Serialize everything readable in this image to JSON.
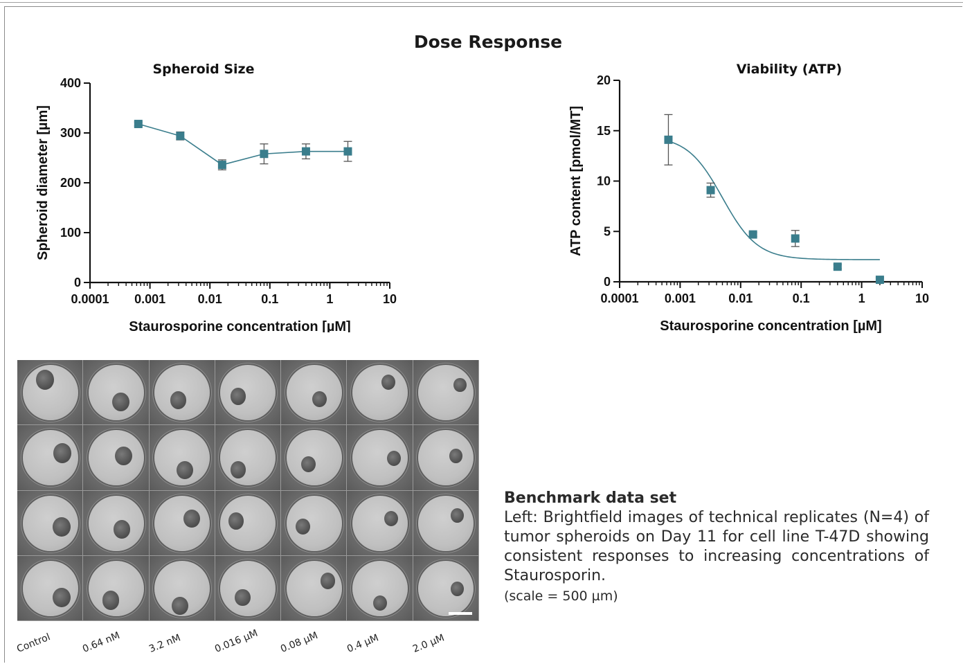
{
  "title": "Dose Response",
  "chart_data": [
    {
      "type": "line",
      "title": "Spheroid Size",
      "xlabel": "Staurosporine concentration [µM]",
      "ylabel": "Spheroid diameter [µm]",
      "xscale": "log",
      "xlim": [
        0.0001,
        10
      ],
      "ylim": [
        0,
        400
      ],
      "xticks": [
        "0.0001",
        "0.001",
        "0.01",
        "0.1",
        "1",
        "10"
      ],
      "yticks": [
        "0",
        "100",
        "200",
        "300",
        "400"
      ],
      "series": [
        {
          "x": [
            0.00064,
            0.0032,
            0.016,
            0.08,
            0.4,
            2.0
          ],
          "y": [
            318,
            294,
            236,
            258,
            263,
            263
          ],
          "err": [
            4,
            8,
            10,
            20,
            15,
            20
          ]
        }
      ],
      "fit": "connecting line",
      "color": "#3a7d8c"
    },
    {
      "type": "scatter",
      "title": "Viability (ATP)",
      "xlabel": "Staurosporine concentration [µM]",
      "ylabel": "ATP content [pmol/MT]",
      "xscale": "log",
      "xlim": [
        0.0001,
        10
      ],
      "ylim": [
        0,
        20
      ],
      "xticks": [
        "0.0001",
        "0.001",
        "0.01",
        "0.1",
        "1",
        "10"
      ],
      "yticks": [
        "0",
        "5",
        "10",
        "15",
        "20"
      ],
      "series": [
        {
          "x": [
            0.00064,
            0.0032,
            0.016,
            0.08,
            0.4,
            2.0
          ],
          "y": [
            14.1,
            9.1,
            4.7,
            4.3,
            1.5,
            0.2
          ],
          "err": [
            2.5,
            0.7,
            0.2,
            0.8,
            0.2,
            0.2
          ]
        }
      ],
      "fit": "sigmoidal dose-response curve",
      "fit_params": {
        "top": 14.5,
        "bottom": 2.2,
        "ec50": 0.005,
        "hill": 1.5
      },
      "color": "#3a7d8c"
    }
  ],
  "plate": {
    "labels": [
      "Control",
      "0.64 nM",
      "3.2 nM",
      "0.016 µM",
      "0.08 µM",
      "0.4 µM",
      "2.0 µM"
    ]
  },
  "caption": {
    "title": "Benchmark data set",
    "body": "Left: Brightfield images of technical replicates (N=4) of tumor spheroids on Day 11 for cell line T-47D showing consistent responses to increasing concentrations of  Staurosporin.",
    "scale": "(scale = 500 µm)"
  }
}
